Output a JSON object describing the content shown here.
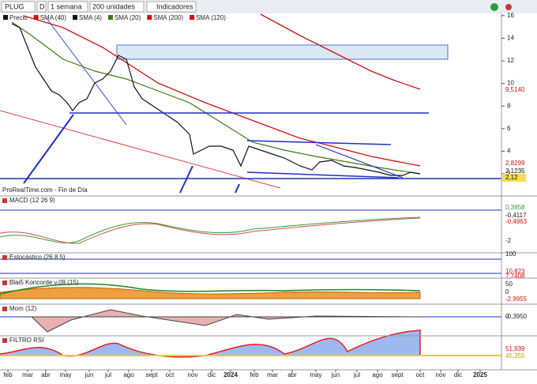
{
  "toolbar": {
    "symbol": "PLUG",
    "mode": "D",
    "period": "1 semana",
    "units": "200 unidades",
    "indicators": "Indicadores"
  },
  "legend": [
    "Precio",
    "SMA (40)",
    "SMA (4)",
    "SMA (20)",
    "SMA (200)",
    "SMA (120)"
  ],
  "price_axis": {
    "ticks": [
      16,
      14,
      12,
      10,
      8,
      6,
      4,
      2
    ],
    "labels": [
      "9,5140",
      "2,8299",
      "2,1235",
      "2,12"
    ]
  },
  "source": "ProRealTime.com - Fin de Día",
  "panels": [
    {
      "title": "MACD (12 26 9)",
      "labels": [
        "0,3858",
        "-0,4117",
        "-0,4963",
        "-2"
      ]
    },
    {
      "title": "Estocástico (26 8 5)",
      "labels": [
        "100",
        "10,823",
        "7,7408"
      ]
    },
    {
      "title": "Blai5 Koncorde v.09 (15)",
      "labels": [
        "50",
        "0",
        "-2,9955"
      ]
    },
    {
      "title": "Mom (12)",
      "labels": [
        "0",
        "-0,3950"
      ]
    },
    {
      "title": "FILTRO RSI",
      "labels": [
        "51,939",
        "45,255"
      ]
    }
  ],
  "months": [
    "feb",
    "mar",
    "abr",
    "may",
    "jun",
    "jul",
    "ago",
    "sept",
    "oct",
    "nov",
    "dic",
    "2024",
    "feb",
    "mar",
    "abr",
    "may",
    "jun",
    "jul",
    "ago",
    "sept",
    "oct",
    "nov",
    "dic",
    "2025"
  ]
}
